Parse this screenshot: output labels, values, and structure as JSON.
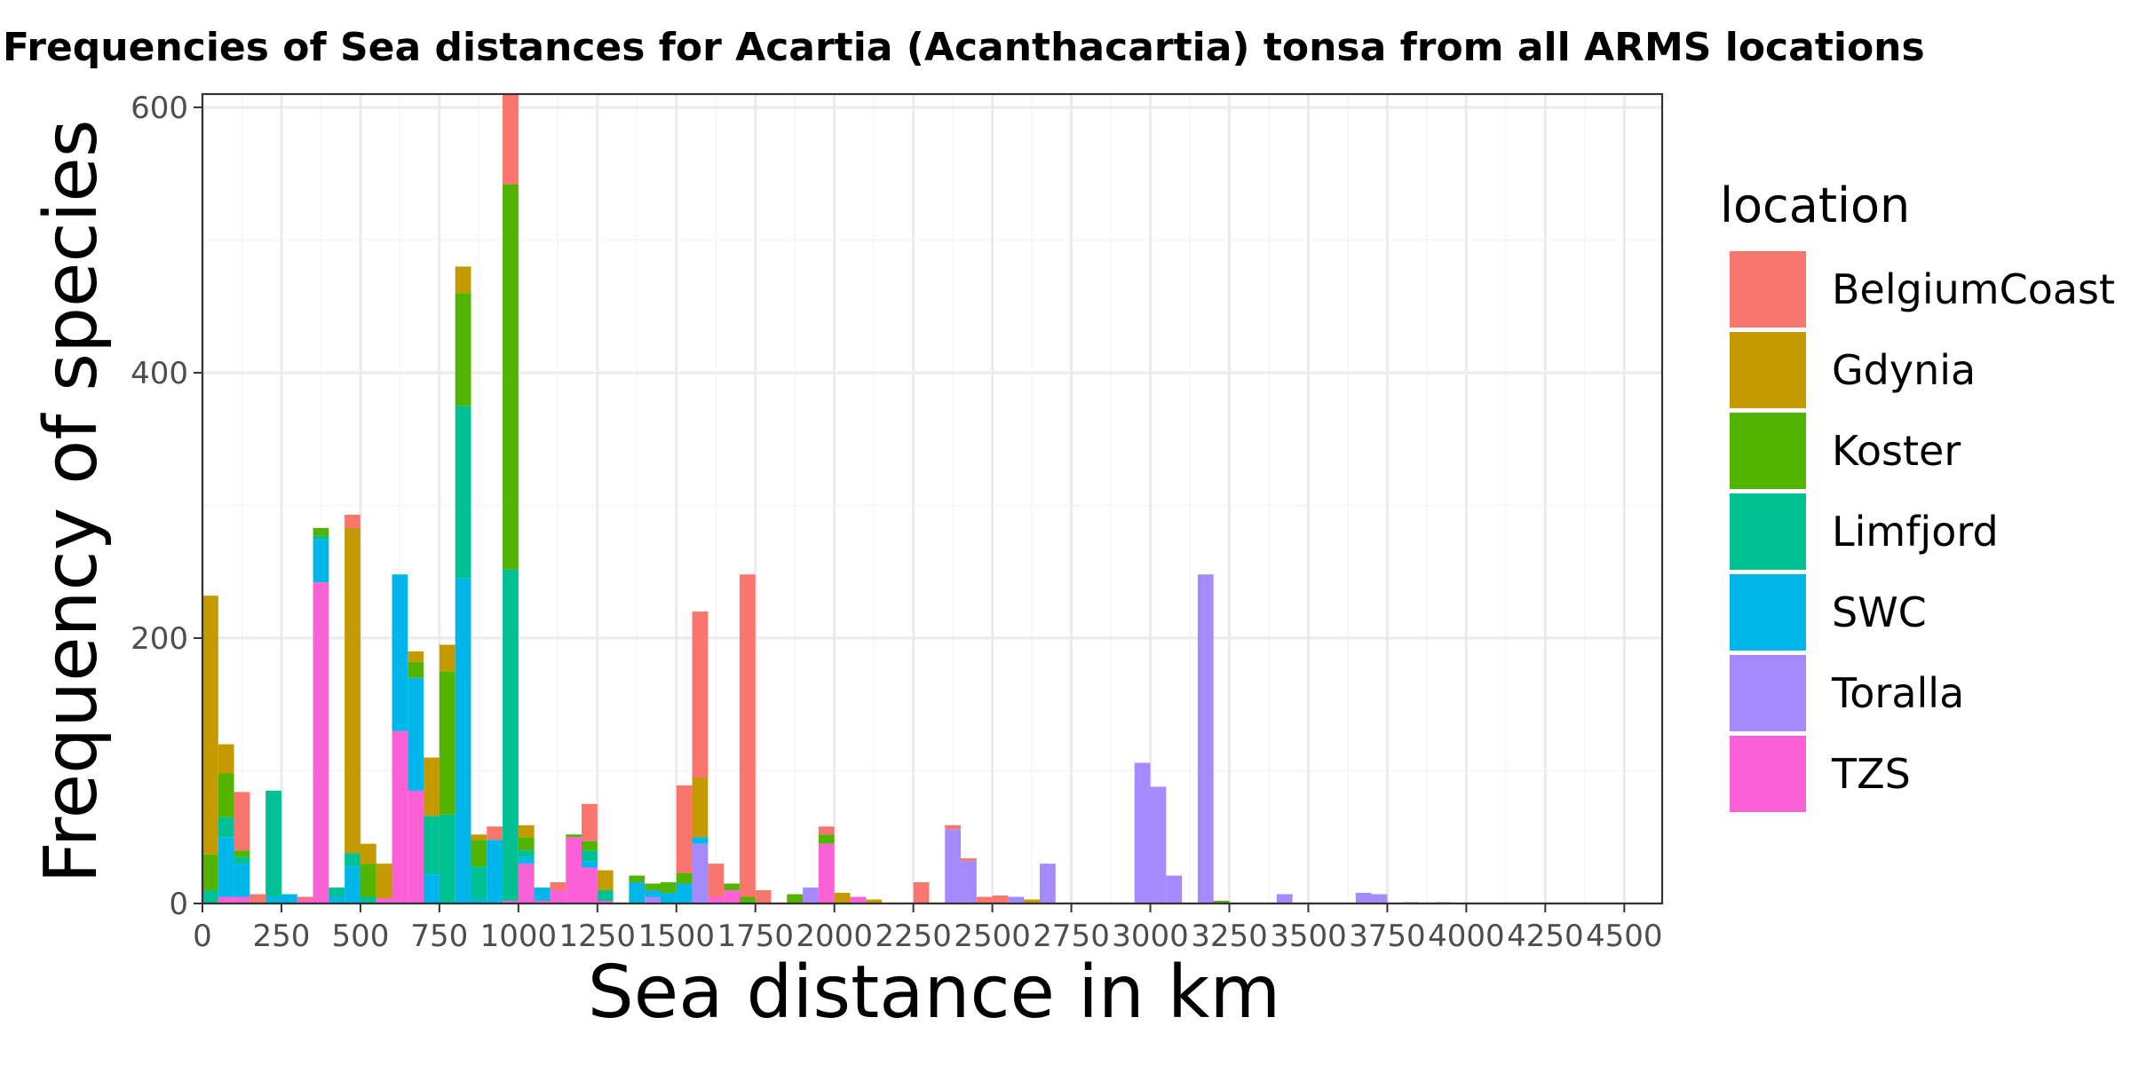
{
  "chart_data": {
    "type": "bar",
    "stacked": true,
    "title": "Frequencies of Sea distances for Acartia (Acanthacartia) tonsa from all ARMS locations",
    "xlabel": "Sea distance in km",
    "ylabel": "Frequency of species",
    "xlim": [
      0,
      4620
    ],
    "ylim": [
      0,
      610
    ],
    "bin_width": 50,
    "x_ticks": [
      0,
      250,
      500,
      750,
      1000,
      1250,
      1500,
      1750,
      2000,
      2250,
      2500,
      2750,
      3000,
      3250,
      3500,
      3750,
      4000,
      4250,
      4500
    ],
    "y_ticks": [
      0,
      200,
      400,
      600
    ],
    "grid": true,
    "legend": {
      "title": "location",
      "position": "right",
      "entries": [
        {
          "name": "BelgiumCoast",
          "color": "#F8766D"
        },
        {
          "name": "Gdynia",
          "color": "#C49A00"
        },
        {
          "name": "Koster",
          "color": "#53B400"
        },
        {
          "name": "Limfjord",
          "color": "#00C094"
        },
        {
          "name": "SWC",
          "color": "#00B6EB"
        },
        {
          "name": "Toralla",
          "color": "#A58AFF"
        },
        {
          "name": "TZS",
          "color": "#FB61D7"
        }
      ]
    },
    "bins": [
      {
        "x": 0,
        "s": {
          "Limfjord": 10,
          "Koster": 27,
          "Gdynia": 195
        }
      },
      {
        "x": 50,
        "s": {
          "TZS": 5,
          "SWC": 45,
          "Limfjord": 15,
          "Koster": 33,
          "Gdynia": 22
        }
      },
      {
        "x": 100,
        "s": {
          "TZS": 5,
          "SWC": 25,
          "Limfjord": 5,
          "Koster": 5,
          "BelgiumCoast": 44
        }
      },
      {
        "x": 150,
        "s": {
          "BelgiumCoast": 7
        }
      },
      {
        "x": 200,
        "s": {
          "SWC": 5,
          "Limfjord": 80
        }
      },
      {
        "x": 250,
        "s": {
          "SWC": 7
        }
      },
      {
        "x": 300,
        "s": {
          "TZS": 3,
          "BelgiumCoast": 2
        }
      },
      {
        "x": 350,
        "s": {
          "TZS": 242,
          "SWC": 32,
          "Limfjord": 3,
          "Koster": 6
        }
      },
      {
        "x": 400,
        "s": {
          "SWC": 5,
          "Limfjord": 7
        }
      },
      {
        "x": 450,
        "s": {
          "SWC": 28,
          "Limfjord": 10,
          "Gdynia": 245,
          "BelgiumCoast": 10
        }
      },
      {
        "x": 500,
        "s": {
          "Limfjord": 5,
          "Koster": 25,
          "Gdynia": 15
        }
      },
      {
        "x": 550,
        "s": {
          "TZS": 4,
          "Gdynia": 26
        }
      },
      {
        "x": 600,
        "s": {
          "TZS": 130,
          "SWC": 118
        }
      },
      {
        "x": 650,
        "s": {
          "TZS": 85,
          "SWC": 85,
          "Koster": 12,
          "Gdynia": 8
        }
      },
      {
        "x": 700,
        "s": {
          "SWC": 22,
          "Limfjord": 44,
          "Gdynia": 44
        }
      },
      {
        "x": 750,
        "s": {
          "Limfjord": 67,
          "Koster": 108,
          "Gdynia": 20
        }
      },
      {
        "x": 800,
        "s": {
          "SWC": 245,
          "Limfjord": 130,
          "Koster": 85,
          "Gdynia": 20
        }
      },
      {
        "x": 850,
        "s": {
          "SWC": 3,
          "Limfjord": 25,
          "Koster": 20,
          "Gdynia": 4
        }
      },
      {
        "x": 900,
        "s": {
          "SWC": 48,
          "BelgiumCoast": 10
        }
      },
      {
        "x": 950,
        "s": {
          "TZS": 2,
          "Limfjord": 250,
          "Koster": 290,
          "BelgiumCoast": 70
        }
      },
      {
        "x": 1000,
        "s": {
          "TZS": 30,
          "SWC": 5,
          "Limfjord": 5,
          "Koster": 10,
          "Gdynia": 9
        }
      },
      {
        "x": 1050,
        "s": {
          "TZS": 2,
          "SWC": 10
        }
      },
      {
        "x": 1100,
        "s": {
          "TZS": 10,
          "BelgiumCoast": 6
        }
      },
      {
        "x": 1150,
        "s": {
          "TZS": 50,
          "Koster": 2
        }
      },
      {
        "x": 1200,
        "s": {
          "TZS": 27,
          "SWC": 5,
          "Limfjord": 8,
          "Koster": 7,
          "BelgiumCoast": 28
        }
      },
      {
        "x": 1250,
        "s": {
          "TZS": 2,
          "Limfjord": 8,
          "Gdynia": 15
        }
      },
      {
        "x": 1350,
        "s": {
          "SWC": 16,
          "Koster": 5
        }
      },
      {
        "x": 1400,
        "s": {
          "Toralla": 5,
          "SWC": 5,
          "Koster": 5
        }
      },
      {
        "x": 1450,
        "s": {
          "SWC": 8,
          "Koster": 8
        }
      },
      {
        "x": 1500,
        "s": {
          "SWC": 15,
          "Koster": 8,
          "BelgiumCoast": 66
        }
      },
      {
        "x": 1550,
        "s": {
          "Toralla": 45,
          "SWC": 5,
          "Gdynia": 45,
          "BelgiumCoast": 125
        }
      },
      {
        "x": 1600,
        "s": {
          "TZS": 5,
          "BelgiumCoast": 25
        }
      },
      {
        "x": 1650,
        "s": {
          "TZS": 10,
          "Koster": 5
        }
      },
      {
        "x": 1700,
        "s": {
          "Koster": 5,
          "BelgiumCoast": 243
        }
      },
      {
        "x": 1750,
        "s": {
          "BelgiumCoast": 10
        }
      },
      {
        "x": 1850,
        "s": {
          "Koster": 7
        }
      },
      {
        "x": 1900,
        "s": {
          "Toralla": 12
        }
      },
      {
        "x": 1950,
        "s": {
          "TZS": 45,
          "Koster": 7,
          "BelgiumCoast": 6
        }
      },
      {
        "x": 2000,
        "s": {
          "Gdynia": 8
        }
      },
      {
        "x": 2050,
        "s": {
          "TZS": 5
        }
      },
      {
        "x": 2100,
        "s": {
          "Gdynia": 3
        }
      },
      {
        "x": 2250,
        "s": {
          "BelgiumCoast": 16
        }
      },
      {
        "x": 2350,
        "s": {
          "Toralla": 56,
          "BelgiumCoast": 3
        }
      },
      {
        "x": 2400,
        "s": {
          "Toralla": 32,
          "BelgiumCoast": 2
        }
      },
      {
        "x": 2450,
        "s": {
          "BelgiumCoast": 5
        }
      },
      {
        "x": 2500,
        "s": {
          "BelgiumCoast": 6
        }
      },
      {
        "x": 2550,
        "s": {
          "Toralla": 5
        }
      },
      {
        "x": 2600,
        "s": {
          "Gdynia": 3
        }
      },
      {
        "x": 2650,
        "s": {
          "Toralla": 30
        }
      },
      {
        "x": 2950,
        "s": {
          "Toralla": 106
        }
      },
      {
        "x": 3000,
        "s": {
          "Toralla": 88
        }
      },
      {
        "x": 3050,
        "s": {
          "Toralla": 21
        }
      },
      {
        "x": 3150,
        "s": {
          "Toralla": 248
        }
      },
      {
        "x": 3200,
        "s": {
          "Koster": 2
        }
      },
      {
        "x": 3400,
        "s": {
          "Toralla": 7
        }
      },
      {
        "x": 3650,
        "s": {
          "Toralla": 8
        }
      },
      {
        "x": 3700,
        "s": {
          "Toralla": 7
        }
      },
      {
        "x": 3800,
        "s": {
          "Toralla": 1
        }
      },
      {
        "x": 3900,
        "s": {
          "Toralla": 1
        }
      }
    ]
  }
}
